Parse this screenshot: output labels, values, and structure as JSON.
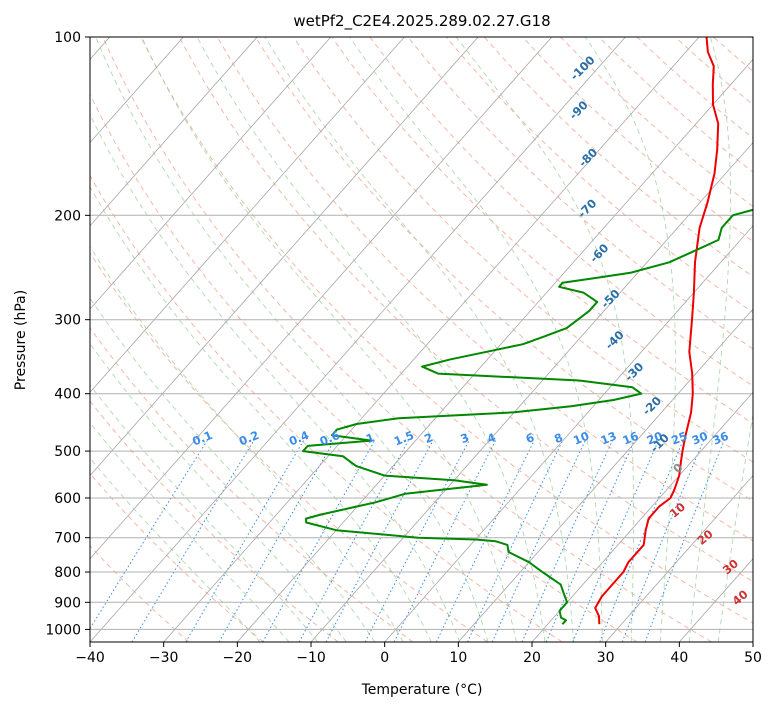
{
  "chart_data": {
    "type": "skew-t",
    "title": "wetPf2_C2E4.2025.289.02.27.G18",
    "xlabel": "Temperature (°C)",
    "ylabel": "Pressure (hPa)",
    "xlim": [
      -40,
      50
    ],
    "ylim": [
      1050,
      100
    ],
    "x_ticks": [
      -40,
      -30,
      -20,
      -10,
      0,
      10,
      20,
      30,
      40,
      50
    ],
    "x_tick_labels": [
      "−40",
      "−30",
      "−20",
      "−10",
      "0",
      "10",
      "20",
      "30",
      "40",
      "50"
    ],
    "y_ticks": [
      1000,
      900,
      800,
      700,
      600,
      500,
      400,
      300,
      200,
      100
    ],
    "y_tick_labels": [
      "1000",
      "900",
      "800",
      "700",
      "600",
      "500",
      "400",
      "300",
      "200",
      "100"
    ],
    "mixing_ratio_labels": [
      "0.1",
      "0.2",
      "0.4",
      "0.6",
      "1",
      "1.5",
      "2",
      "3",
      "4",
      "6",
      "8",
      "10",
      "13",
      "16",
      "20",
      "25",
      "30",
      "36"
    ],
    "mixing_ratio_values": [
      0.1,
      0.2,
      0.4,
      0.6,
      1,
      1.5,
      2,
      3,
      4,
      6,
      8,
      10,
      13,
      16,
      20,
      25,
      30,
      36
    ],
    "moist_adiabat_labels": [
      {
        "text": "-100",
        "p": 113,
        "t": -42
      },
      {
        "text": "-90",
        "p": 133,
        "t": -37.5
      },
      {
        "text": "-80",
        "p": 160,
        "t": -30.5
      },
      {
        "text": "-70",
        "p": 195,
        "t": -24.5
      },
      {
        "text": "-60",
        "p": 232,
        "t": -17.5
      },
      {
        "text": "-50",
        "p": 277,
        "t": -10.5
      },
      {
        "text": "-40",
        "p": 325,
        "t": -5
      },
      {
        "text": "-30",
        "p": 368,
        "t": 1.5
      },
      {
        "text": "-20",
        "p": 420,
        "t": 8
      },
      {
        "text": "-10",
        "p": 485,
        "t": 13.5
      }
    ],
    "zero_label": {
      "text": "0",
      "p": 535,
      "t": 19
    },
    "dry_adiabat_labels": [
      {
        "text": "10",
        "p": 630,
        "t": 24
      },
      {
        "text": "20",
        "p": 700,
        "t": 31
      },
      {
        "text": "30",
        "p": 785,
        "t": 38
      },
      {
        "text": "40",
        "p": 885,
        "t": 43
      }
    ],
    "series": [
      {
        "name": "temperature",
        "color": "#ee0000",
        "points": [
          [
            980,
            27
          ],
          [
            950,
            26
          ],
          [
            920,
            24.5
          ],
          [
            880,
            24
          ],
          [
            850,
            24
          ],
          [
            800,
            24
          ],
          [
            770,
            23.5
          ],
          [
            720,
            23.5
          ],
          [
            680,
            22
          ],
          [
            650,
            21
          ],
          [
            620,
            21
          ],
          [
            600,
            21.5
          ],
          [
            580,
            21
          ],
          [
            550,
            20
          ],
          [
            520,
            18.5
          ],
          [
            500,
            17.5
          ],
          [
            470,
            16
          ],
          [
            430,
            14
          ],
          [
            400,
            12
          ],
          [
            370,
            9.5
          ],
          [
            340,
            6.5
          ],
          [
            300,
            3
          ],
          [
            270,
            0
          ],
          [
            240,
            -3.5
          ],
          [
            210,
            -7
          ],
          [
            190,
            -9
          ],
          [
            170,
            -11.5
          ],
          [
            155,
            -14
          ],
          [
            140,
            -17
          ],
          [
            130,
            -20
          ],
          [
            120,
            -22.5
          ],
          [
            112,
            -24.5
          ],
          [
            106,
            -27
          ],
          [
            100,
            -29
          ]
        ]
      },
      {
        "name": "dewpoint",
        "color": "#008800",
        "points": [
          [
            980,
            22
          ],
          [
            965,
            22
          ],
          [
            955,
            21
          ],
          [
            930,
            20
          ],
          [
            900,
            20
          ],
          [
            870,
            18.5
          ],
          [
            840,
            17
          ],
          [
            800,
            13
          ],
          [
            770,
            10
          ],
          [
            740,
            6
          ],
          [
            720,
            5
          ],
          [
            710,
            3
          ],
          [
            705,
            0
          ],
          [
            700,
            -8
          ],
          [
            680,
            -20
          ],
          [
            660,
            -25
          ],
          [
            650,
            -25.5
          ],
          [
            640,
            -24
          ],
          [
            620,
            -20
          ],
          [
            610,
            -18
          ],
          [
            590,
            -15
          ],
          [
            570,
            -5
          ],
          [
            560,
            -10
          ],
          [
            550,
            -20
          ],
          [
            530,
            -25
          ],
          [
            510,
            -28
          ],
          [
            500,
            -34
          ],
          [
            490,
            -34
          ],
          [
            480,
            -26
          ],
          [
            470,
            -32
          ],
          [
            460,
            -32
          ],
          [
            450,
            -30
          ],
          [
            440,
            -25
          ],
          [
            430,
            -10
          ],
          [
            420,
            -3
          ],
          [
            410,
            2
          ],
          [
            400,
            5
          ],
          [
            390,
            3
          ],
          [
            380,
            -5
          ],
          [
            370,
            -25
          ],
          [
            360,
            -28
          ],
          [
            350,
            -25
          ],
          [
            330,
            -17
          ],
          [
            320,
            -15
          ],
          [
            310,
            -13
          ],
          [
            290,
            -12
          ],
          [
            280,
            -12
          ],
          [
            270,
            -15
          ],
          [
            264,
            -19
          ],
          [
            260,
            -19
          ],
          [
            255,
            -15
          ],
          [
            250,
            -11
          ],
          [
            240,
            -7
          ],
          [
            230,
            -5
          ],
          [
            220,
            -3
          ],
          [
            210,
            -4
          ],
          [
            200,
            -4
          ],
          [
            190,
            1
          ],
          [
            185,
            -1
          ],
          [
            180,
            0
          ],
          [
            170,
            1
          ],
          [
            160,
            0
          ],
          [
            150,
            -1
          ],
          [
            140,
            0
          ],
          [
            130,
            -1
          ],
          [
            120,
            -1
          ],
          [
            110,
            1
          ],
          [
            100,
            4
          ]
        ]
      }
    ],
    "colors": {
      "temperature": "#ee0000",
      "dewpoint": "#008800",
      "dry_adiabat": "#f2a38c",
      "moist_adiabat": "#9bcf9b",
      "mixing_ratio": "#3b8ce8",
      "isotherm": "#a6a6a6",
      "moist_label": "#2a6ea8",
      "dry_label": "#cc3333",
      "mixing_label": "#3b8ce8",
      "zero_label": "#888888"
    }
  }
}
